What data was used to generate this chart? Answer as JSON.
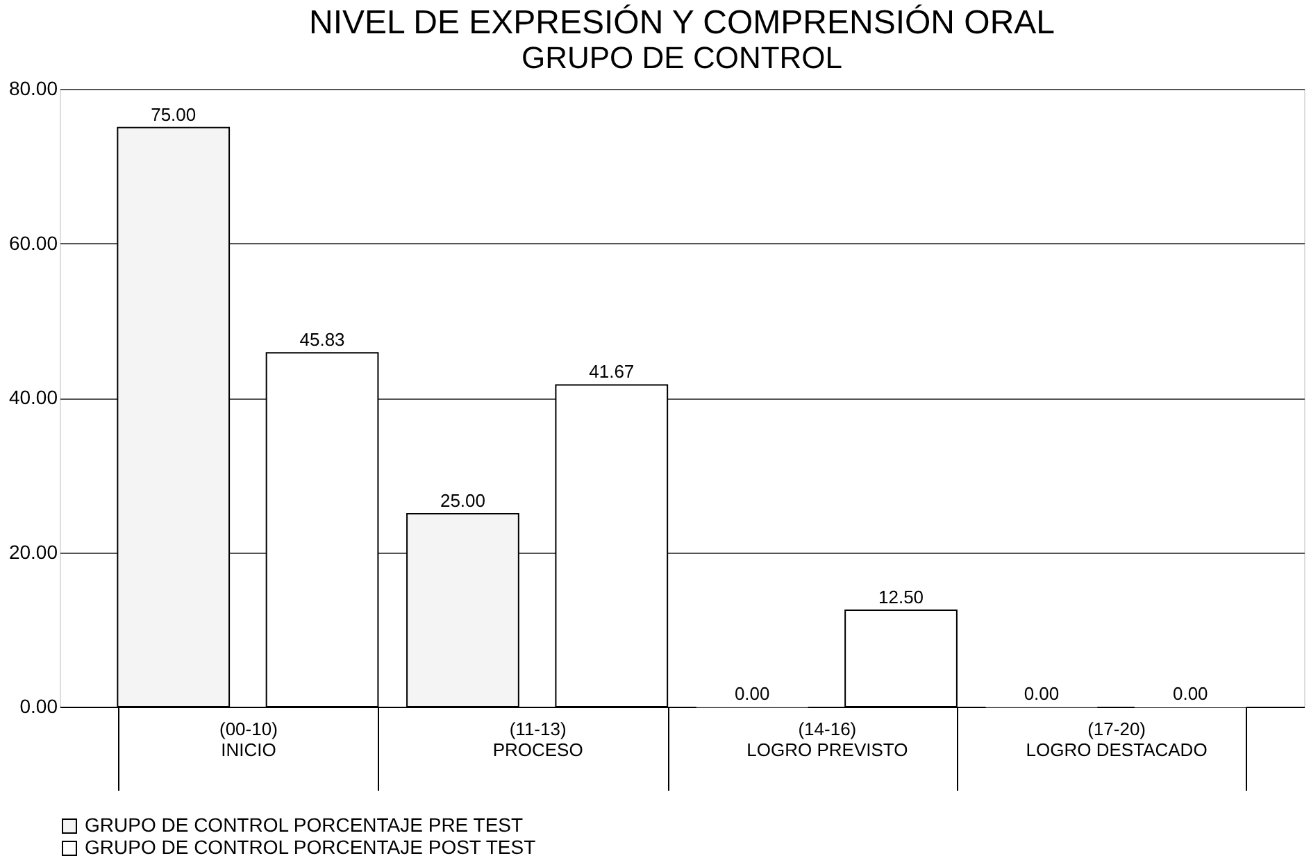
{
  "chart_data": {
    "type": "bar",
    "title": "NIVEL DE EXPRESIÓN Y COMPRENSIÓN ORAL",
    "subtitle": "GRUPO DE CONTROL",
    "categories": [
      "(00-10)\nINICIO",
      "(11-13)\nPROCESO",
      "(14-16)\nLOGRO PREVISTO",
      "(17-20)\nLOGRO DESTACADO"
    ],
    "series": [
      {
        "name": "GRUPO DE CONTROL PORCENTAJE PRE TEST",
        "color": "#f4f4f4",
        "values": [
          75.0,
          25.0,
          0.0,
          0.0
        ],
        "value_labels": [
          "75.00",
          "25.00",
          "0.00",
          "0.00"
        ]
      },
      {
        "name": "GRUPO DE CONTROL PORCENTAJE POST TEST",
        "color": "#ffffff",
        "values": [
          45.83,
          41.67,
          12.5,
          0.0
        ],
        "value_labels": [
          "45.83",
          "41.67",
          "12.50",
          "0.00"
        ]
      }
    ],
    "ylim": [
      0,
      80
    ],
    "yticks": [
      {
        "value": 0,
        "label": "0.00"
      },
      {
        "value": 20,
        "label": "20.00"
      },
      {
        "value": 40,
        "label": "40.00"
      },
      {
        "value": 60,
        "label": "60.00"
      },
      {
        "value": 80,
        "label": "80.00"
      }
    ],
    "grid": "y",
    "legend": "bottom"
  }
}
